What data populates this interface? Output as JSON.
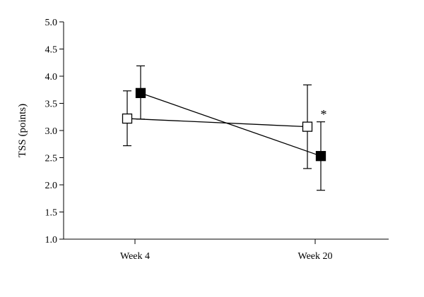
{
  "chart_data": {
    "type": "line",
    "categories": [
      "Week 4",
      "Week 20"
    ],
    "ylabel": "TSS (points)",
    "xlabel": "",
    "ylim": [
      1.0,
      5.0
    ],
    "yticks": [
      "1.0",
      "1.5",
      "2.0",
      "2.5",
      "3.0",
      "3.5",
      "4.0",
      "4.5",
      "5.0"
    ],
    "grid": false,
    "series": [
      {
        "marker": "open-square",
        "color": "#000000",
        "values": [
          3.22,
          3.07
        ],
        "error_low": [
          2.72,
          2.3
        ],
        "error_high": [
          3.73,
          3.84
        ]
      },
      {
        "marker": "filled-square",
        "color": "#000000",
        "values": [
          3.69,
          2.53
        ],
        "error_low": [
          3.21,
          1.9
        ],
        "error_high": [
          4.19,
          3.16
        ]
      }
    ],
    "annotations": [
      {
        "text": "*",
        "category": "Week 20",
        "y": 3.3
      }
    ]
  }
}
